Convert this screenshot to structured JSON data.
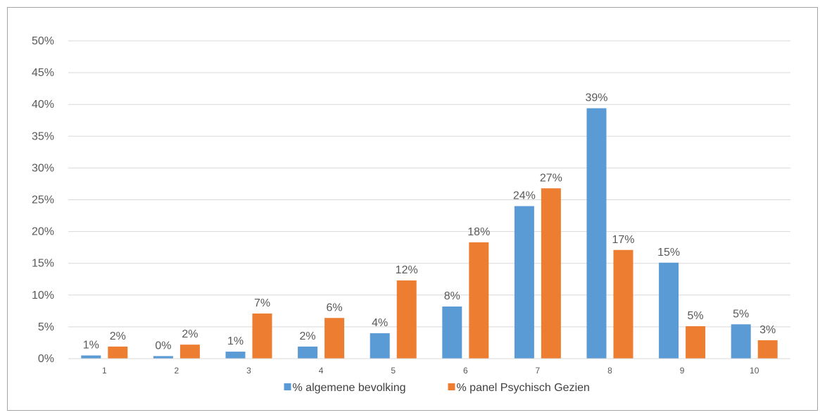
{
  "chart_data": {
    "type": "bar",
    "categories": [
      "1",
      "2",
      "3",
      "4",
      "5",
      "6",
      "7",
      "8",
      "9",
      "10"
    ],
    "series": [
      {
        "name": "% algemene bevolking",
        "color": "#5b9bd5",
        "values": [
          0.5,
          0.4,
          1.1,
          1.9,
          4.0,
          8.2,
          24.0,
          39.4,
          15.1,
          5.4
        ],
        "labels": [
          "1%",
          "0%",
          "1%",
          "2%",
          "4%",
          "8%",
          "24%",
          "39%",
          "15%",
          "5%"
        ]
      },
      {
        "name": "% panel Psychisch Gezien",
        "color": "#ed7d31",
        "values": [
          1.9,
          2.2,
          7.1,
          6.4,
          12.3,
          18.3,
          26.8,
          17.1,
          5.1,
          2.9
        ],
        "labels": [
          "2%",
          "2%",
          "7%",
          "6%",
          "12%",
          "18%",
          "27%",
          "17%",
          "5%",
          "3%"
        ]
      }
    ],
    "ylim": [
      0,
      50
    ],
    "yticks": [
      "0%",
      "5%",
      "10%",
      "15%",
      "20%",
      "25%",
      "30%",
      "35%",
      "40%",
      "45%",
      "50%"
    ],
    "grid": true,
    "legend_position": "bottom"
  }
}
